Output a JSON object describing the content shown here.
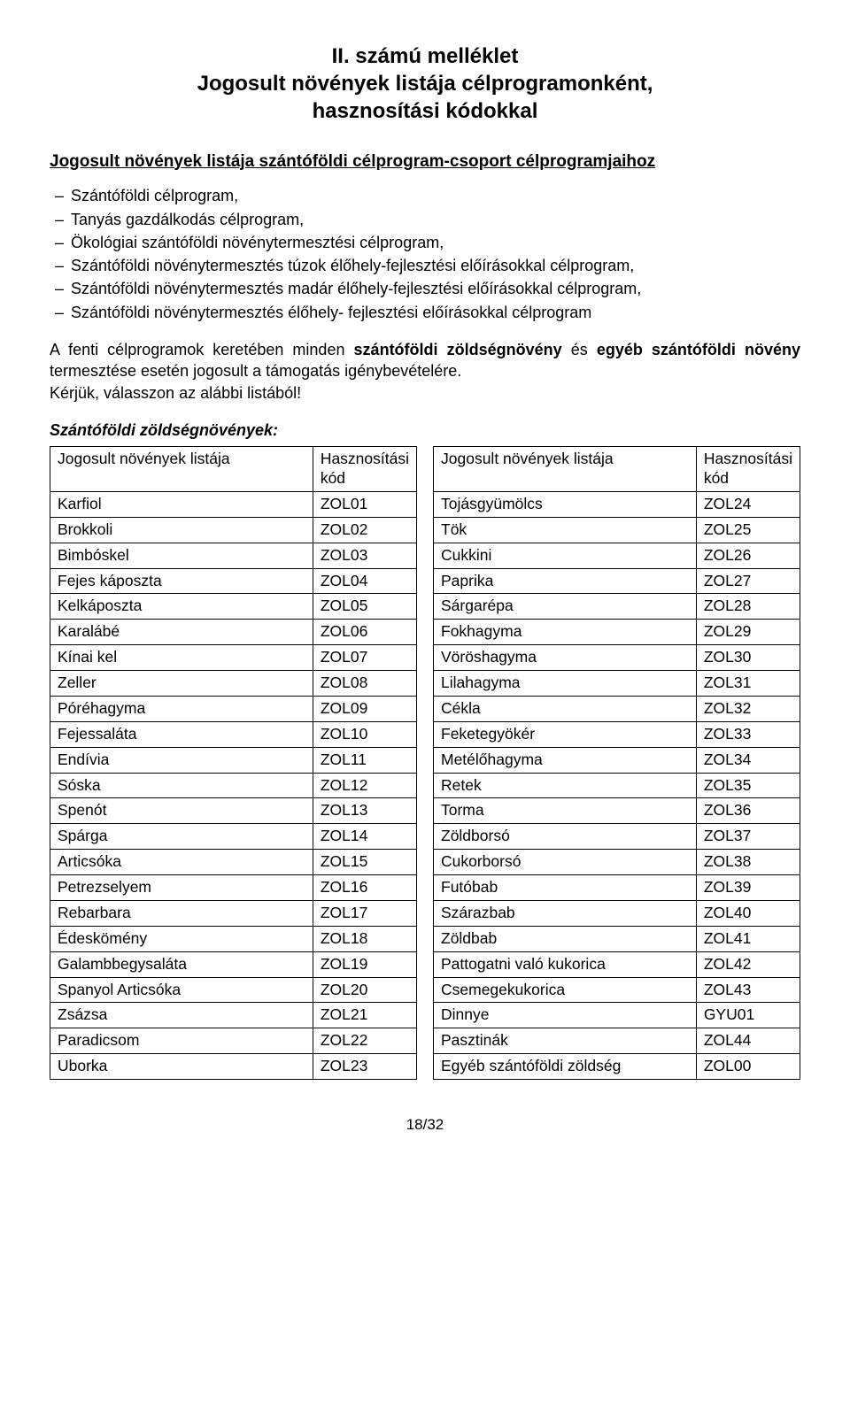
{
  "title_line1": "II. számú melléklet",
  "title_line2": "Jogosult növények listája célprogramonként,",
  "title_line3": "hasznosítási kódokkal",
  "subtitle": "Jogosult növények listája szántóföldi célprogram-csoport célprogramjaihoz",
  "programs": [
    "Szántóföldi célprogram,",
    "Tanyás gazdálkodás célprogram,",
    "Ökológiai szántóföldi növénytermesztési célprogram,",
    "Szántóföldi növénytermesztés túzok élőhely-fejlesztési előírásokkal célprogram,",
    "Szántóföldi növénytermesztés madár élőhely-fejlesztési előírásokkal célprogram,",
    "Szántóföldi növénytermesztés élőhely- fejlesztési előírásokkal célprogram"
  ],
  "para1a": "A fenti célprogramok keretében minden ",
  "para1b": "szántóföldi zöldségnövény",
  "para1c": " és ",
  "para1d": "egyéb szántóföldi növény",
  "para1e": " termesztése esetén jogosult a támogatás igénybevételére.",
  "para2": "Kérjük, válasszon az alábbi listából!",
  "section_label": "Szántóföldi zöldségnövények:",
  "table_header_name": "Jogosult növények listája",
  "table_header_code": "Hasznosítási kód",
  "left_rows": [
    {
      "name": "Karfiol",
      "code": "ZOL01"
    },
    {
      "name": "Brokkoli",
      "code": "ZOL02"
    },
    {
      "name": "Bimbóskel",
      "code": "ZOL03"
    },
    {
      "name": "Fejes káposzta",
      "code": "ZOL04"
    },
    {
      "name": "Kelkáposzta",
      "code": "ZOL05"
    },
    {
      "name": "Karalábé",
      "code": "ZOL06"
    },
    {
      "name": "Kínai kel",
      "code": "ZOL07"
    },
    {
      "name": "Zeller",
      "code": "ZOL08"
    },
    {
      "name": "Póréhagyma",
      "code": "ZOL09"
    },
    {
      "name": "Fejessaláta",
      "code": "ZOL10"
    },
    {
      "name": "Endívia",
      "code": "ZOL11"
    },
    {
      "name": "Sóska",
      "code": "ZOL12"
    },
    {
      "name": "Spenót",
      "code": "ZOL13"
    },
    {
      "name": "Spárga",
      "code": "ZOL14"
    },
    {
      "name": "Articsóka",
      "code": "ZOL15"
    },
    {
      "name": "Petrezselyem",
      "code": "ZOL16"
    },
    {
      "name": "Rebarbara",
      "code": "ZOL17"
    },
    {
      "name": "Édeskömény",
      "code": "ZOL18"
    },
    {
      "name": "Galambbegysaláta",
      "code": "ZOL19"
    },
    {
      "name": "Spanyol Articsóka",
      "code": "ZOL20"
    },
    {
      "name": "Zsázsa",
      "code": "ZOL21"
    },
    {
      "name": "Paradicsom",
      "code": "ZOL22"
    },
    {
      "name": "Uborka",
      "code": "ZOL23"
    }
  ],
  "right_rows": [
    {
      "name": "Tojásgyümölcs",
      "code": "ZOL24"
    },
    {
      "name": "Tök",
      "code": "ZOL25"
    },
    {
      "name": "Cukkini",
      "code": "ZOL26"
    },
    {
      "name": "Paprika",
      "code": "ZOL27"
    },
    {
      "name": "Sárgarépa",
      "code": "ZOL28"
    },
    {
      "name": "Fokhagyma",
      "code": "ZOL29"
    },
    {
      "name": "Vöröshagyma",
      "code": "ZOL30"
    },
    {
      "name": "Lilahagyma",
      "code": "ZOL31"
    },
    {
      "name": "Cékla",
      "code": "ZOL32"
    },
    {
      "name": "Feketegyökér",
      "code": "ZOL33"
    },
    {
      "name": "Metélőhagyma",
      "code": "ZOL34"
    },
    {
      "name": "Retek",
      "code": "ZOL35"
    },
    {
      "name": "Torma",
      "code": "ZOL36"
    },
    {
      "name": "Zöldborsó",
      "code": "ZOL37"
    },
    {
      "name": "Cukorborsó",
      "code": "ZOL38"
    },
    {
      "name": "Futóbab",
      "code": "ZOL39"
    },
    {
      "name": "Szárazbab",
      "code": "ZOL40"
    },
    {
      "name": "Zöldbab",
      "code": "ZOL41"
    },
    {
      "name": "Pattogatni való kukorica",
      "code": "ZOL42"
    },
    {
      "name": "Csemegekukorica",
      "code": "ZOL43"
    },
    {
      "name": "Dinnye",
      "code": "GYU01"
    },
    {
      "name": "Pasztinák",
      "code": "ZOL44"
    },
    {
      "name": "Egyéb szántóföldi zöldség",
      "code": "ZOL00"
    }
  ],
  "page_number": "18/32"
}
